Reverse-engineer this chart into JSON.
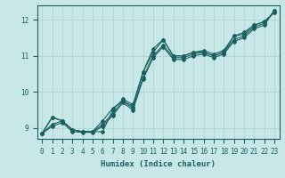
{
  "background_color": "#c8e8e8",
  "grid_color": "#b0d4d4",
  "line_color": "#1a6060",
  "xlabel": "Humidex (Indice chaleur)",
  "xlim": [
    -0.5,
    23.5
  ],
  "ylim": [
    8.7,
    12.4
  ],
  "yticks": [
    9,
    10,
    11,
    12
  ],
  "xticks": [
    0,
    1,
    2,
    3,
    4,
    5,
    6,
    7,
    8,
    9,
    10,
    11,
    12,
    13,
    14,
    15,
    16,
    17,
    18,
    19,
    20,
    21,
    22,
    23
  ],
  "lines": [
    {
      "x": [
        0,
        1,
        2,
        3,
        4,
        5,
        6,
        7,
        8,
        9,
        10,
        11,
        12,
        13,
        14,
        15,
        16,
        17,
        18,
        19,
        20,
        21,
        22,
        23
      ],
      "y": [
        8.85,
        9.3,
        9.2,
        8.95,
        8.9,
        8.9,
        8.9,
        9.5,
        9.8,
        9.65,
        10.55,
        11.1,
        11.45,
        11.0,
        11.0,
        11.1,
        11.1,
        11.0,
        11.1,
        11.55,
        11.6,
        11.85,
        11.95,
        12.2
      ]
    },
    {
      "x": [
        0,
        1,
        2,
        3,
        4,
        5,
        6,
        7,
        8,
        9,
        10,
        11,
        12,
        13,
        14,
        15,
        16,
        17,
        18,
        19,
        20,
        21,
        22,
        23
      ],
      "y": [
        8.85,
        9.3,
        9.2,
        8.95,
        8.9,
        8.9,
        9.2,
        9.55,
        9.75,
        9.6,
        10.55,
        11.2,
        11.45,
        11.0,
        11.0,
        11.1,
        11.15,
        11.05,
        11.15,
        11.55,
        11.65,
        11.85,
        11.95,
        12.2
      ]
    },
    {
      "x": [
        0,
        1,
        2,
        3,
        4,
        5,
        6,
        7,
        8,
        9,
        10,
        11,
        12,
        13,
        14,
        15,
        16,
        17,
        18,
        19,
        20,
        21,
        22,
        23
      ],
      "y": [
        8.85,
        9.1,
        9.2,
        8.95,
        8.9,
        8.9,
        9.1,
        9.4,
        9.75,
        9.55,
        10.4,
        11.0,
        11.3,
        10.95,
        10.95,
        11.05,
        11.1,
        11.0,
        11.1,
        11.45,
        11.55,
        11.8,
        11.9,
        12.25
      ]
    },
    {
      "x": [
        0,
        1,
        2,
        3,
        4,
        5,
        6,
        7,
        8,
        9,
        10,
        11,
        12,
        13,
        14,
        15,
        16,
        17,
        18,
        19,
        20,
        21,
        22,
        23
      ],
      "y": [
        8.85,
        9.05,
        9.15,
        8.9,
        8.88,
        8.88,
        9.05,
        9.35,
        9.7,
        9.5,
        10.35,
        10.95,
        11.25,
        10.9,
        10.9,
        11.0,
        11.05,
        10.95,
        11.05,
        11.4,
        11.5,
        11.75,
        11.85,
        12.25
      ]
    }
  ],
  "marker": "D",
  "markersize": 2.0,
  "linewidth": 0.8,
  "label_fontsize": 6.5,
  "tick_fontsize": 5.5
}
